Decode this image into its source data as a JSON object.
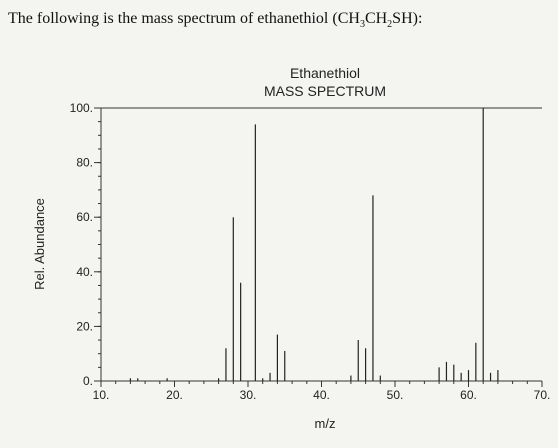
{
  "intro": {
    "prefix": "The following is the mass spectrum of ethanethiol (CH",
    "sub1": "3",
    "mid": "CH",
    "sub2": "2",
    "suffix": "SH):"
  },
  "chart_data": {
    "type": "bar",
    "title": "Ethanethiol",
    "subtitle": "MASS SPECTRUM",
    "xlabel": "m/z",
    "ylabel": "Rel. Abundance",
    "xlim": [
      10,
      70
    ],
    "ylim": [
      0,
      100
    ],
    "x_ticks": [
      10,
      20,
      30,
      40,
      50,
      60,
      70
    ],
    "x_tick_labels": [
      "10.",
      "20.",
      "30.",
      "40.",
      "50.",
      "60.",
      "70."
    ],
    "y_ticks": [
      0,
      20,
      40,
      60,
      80,
      100
    ],
    "y_tick_labels": [
      "0.",
      "20.",
      "40.",
      "60.",
      "80.",
      "100."
    ],
    "grid": false,
    "series": [
      {
        "mz": [
          14,
          15,
          19,
          26,
          27,
          28,
          29,
          31,
          32,
          33,
          34,
          35,
          44,
          45,
          46,
          47,
          48,
          56,
          57,
          58,
          59,
          60,
          61,
          62,
          63,
          64
        ],
        "abundance": [
          1,
          1,
          1,
          1,
          12,
          60,
          36,
          94,
          1,
          3,
          17,
          11,
          2,
          15,
          12,
          68,
          2,
          5,
          7,
          6,
          3,
          4,
          14,
          100,
          3,
          4
        ]
      }
    ]
  }
}
